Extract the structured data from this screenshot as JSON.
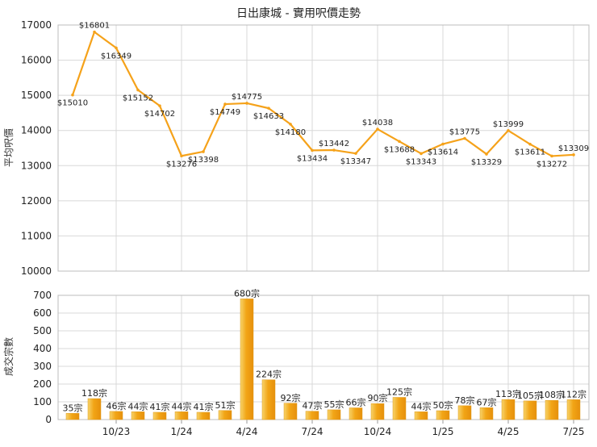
{
  "chart_data": [
    {
      "type": "line",
      "title": "日出康城 - 實用呎價走勢",
      "ylabel": "平均呎價",
      "ylim": [
        10000,
        17000
      ],
      "y_ticks": [
        10000,
        11000,
        12000,
        13000,
        14000,
        15000,
        16000,
        17000
      ],
      "x_tick_labels": [
        "10/23",
        "1/24",
        "4/24",
        "7/24",
        "10/24",
        "1/25",
        "4/25",
        "7/25"
      ],
      "grid": true,
      "color": "#f5a21a",
      "values": [
        15010,
        16801,
        16349,
        15152,
        14702,
        13276,
        13398,
        14749,
        14775,
        14633,
        14180,
        13434,
        13442,
        13347,
        14038,
        13688,
        13343,
        13614,
        13775,
        13329,
        13999,
        13611,
        13272,
        13309
      ],
      "point_labels": [
        "$15010",
        "$16801",
        "$16349",
        "$15152",
        "$14702",
        "$13276",
        "$13398",
        "$14749",
        "$14775",
        "$14633",
        "$14180",
        "$13434",
        "$13442",
        "$13347",
        "$14038",
        "$13688",
        "$13343",
        "$13614",
        "$13775",
        "$13329",
        "$13999",
        "$13611",
        "$13272",
        "$13309"
      ]
    },
    {
      "type": "bar",
      "ylabel": "成交宗數",
      "ylim": [
        0,
        700
      ],
      "y_ticks": [
        0,
        100,
        200,
        300,
        400,
        500,
        600,
        700
      ],
      "x_tick_labels": [
        "10/23",
        "1/24",
        "4/24",
        "7/24",
        "10/24",
        "1/25",
        "4/25",
        "7/25"
      ],
      "grid": true,
      "color": "#f5b52a",
      "values": [
        35,
        118,
        46,
        44,
        41,
        44,
        41,
        51,
        680,
        224,
        92,
        47,
        55,
        66,
        90,
        125,
        44,
        50,
        78,
        67,
        113,
        105,
        108,
        112
      ],
      "bar_labels": [
        "35宗",
        "118宗",
        "46宗",
        "44宗",
        "41宗",
        "44宗",
        "41宗",
        "51宗",
        "680宗",
        "224宗",
        "92宗",
        "47宗",
        "55宗",
        "66宗",
        "90宗",
        "125宗",
        "44宗",
        "50宗",
        "78宗",
        "67宗",
        "113宗",
        "105宗",
        "108宗",
        "112宗"
      ]
    }
  ]
}
